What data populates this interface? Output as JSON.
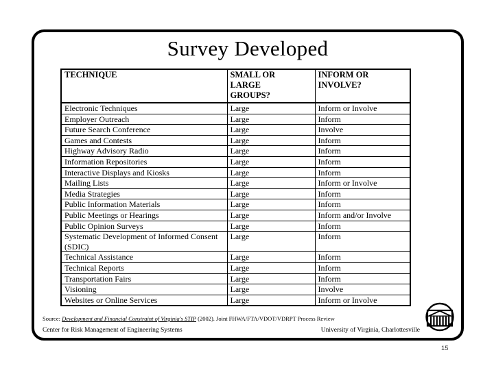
{
  "slide": {
    "title": "Survey Developed",
    "page_number": "15"
  },
  "table": {
    "columns": [
      "TECHNIQUE",
      "SMALL OR\nLARGE\nGROUPS?",
      "INFORM OR\nINVOLVE?"
    ],
    "rows": [
      [
        "Electronic Techniques",
        "Large",
        "Inform or Involve"
      ],
      [
        "Employer Outreach",
        "Large",
        "Inform"
      ],
      [
        "Future Search Conference",
        "Large",
        "Involve"
      ],
      [
        "Games and Contests",
        "Large",
        "Inform"
      ],
      [
        "Highway Advisory Radio",
        "Large",
        "Inform"
      ],
      [
        "Information Repositories",
        "Large",
        "Inform"
      ],
      [
        "Interactive Displays and Kiosks",
        "Large",
        "Inform"
      ],
      [
        "Mailing Lists",
        "Large",
        "Inform or Involve"
      ],
      [
        "Media Strategies",
        "Large",
        "Inform"
      ],
      [
        "Public Information Materials",
        "Large",
        "Inform"
      ],
      [
        "Public Meetings or Hearings",
        "Large",
        "Inform and/or Involve"
      ],
      [
        "Public Opinion Surveys",
        "Large",
        "Inform"
      ],
      [
        "Systematic Development of Informed Consent (SDIC)",
        "Large",
        "Inform"
      ],
      [
        "Technical Assistance",
        "Large",
        "Inform"
      ],
      [
        "Technical Reports",
        "Large",
        "Inform"
      ],
      [
        "Transportation Fairs",
        "Large",
        "Inform"
      ],
      [
        "Visioning",
        "Large",
        "Involve"
      ],
      [
        "Websites or Online Services",
        "Large",
        "Inform or Involve"
      ]
    ]
  },
  "footer": {
    "source_prefix": "Source: ",
    "source_link": "Development and Financial Constraint of Virginia's STIP",
    "source_suffix": " (2002). Joint FHWA/FTA/VDOT/VDRPT Process Review",
    "left": "Center for Risk Management of Engineering Systems",
    "right": "University of Virginia, Charlottesville"
  },
  "icons": {
    "footer_logo": "uva-rotunda-icon"
  }
}
